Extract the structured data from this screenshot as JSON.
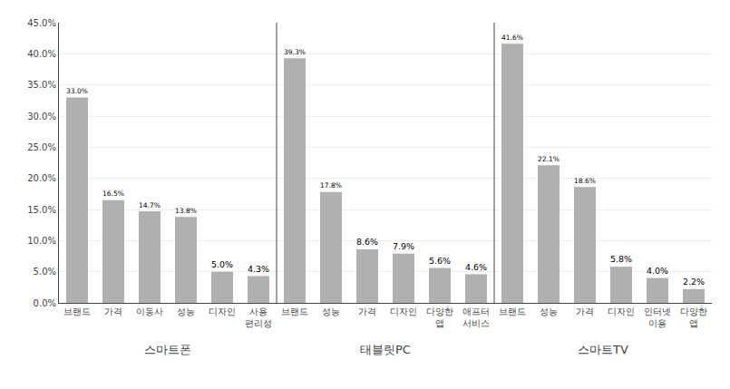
{
  "chart_data": {
    "type": "bar",
    "categories": [
      "브랜드",
      "가격",
      "이동사",
      "성능",
      "디자인",
      "사용\n편리성",
      "브랜드",
      "성능",
      "가격",
      "디자인",
      "다양한\n앱",
      "애프터\n서비스",
      "브랜드",
      "성능",
      "가격",
      "디자인",
      "인터넷\n이용",
      "다양한\n앱"
    ],
    "values": [
      33.0,
      16.5,
      14.7,
      13.8,
      5.0,
      4.3,
      39.3,
      17.8,
      8.6,
      7.9,
      5.6,
      4.6,
      41.6,
      22.1,
      18.6,
      5.8,
      4.0,
      2.2
    ],
    "value_labels": [
      "33.0%",
      "16.5%",
      "14.7%",
      "13.8%",
      "5.0%",
      "4.3%",
      "39.3%",
      "17.8%",
      "8.6%",
      "7.9%",
      "5.6%",
      "4.6%",
      "41.6%",
      "22.1%",
      "18.6%",
      "5.8%",
      "4.0%",
      "2.2%"
    ],
    "data_labels": true,
    "groups": [
      {
        "label": "스마트폰",
        "start": 0,
        "end": 5
      },
      {
        "label": "태블릿PC",
        "start": 6,
        "end": 11
      },
      {
        "label": "스마트TV",
        "start": 12,
        "end": 17
      }
    ],
    "color": "#b0b0b0",
    "ylim": [
      0,
      45
    ],
    "yticks": [
      {
        "value": 0,
        "label": "0.0%"
      },
      {
        "value": 5,
        "label": "5.0%"
      },
      {
        "value": 10,
        "label": "10.0%"
      },
      {
        "value": 15,
        "label": "15.0%"
      },
      {
        "value": 20,
        "label": "20.0%"
      },
      {
        "value": 25,
        "label": "25.0%"
      },
      {
        "value": 30,
        "label": "30.0%"
      },
      {
        "value": 35,
        "label": "35.0%"
      },
      {
        "value": 40,
        "label": "40.0%"
      },
      {
        "value": 45,
        "label": "45.0%"
      }
    ],
    "grid": true
  }
}
